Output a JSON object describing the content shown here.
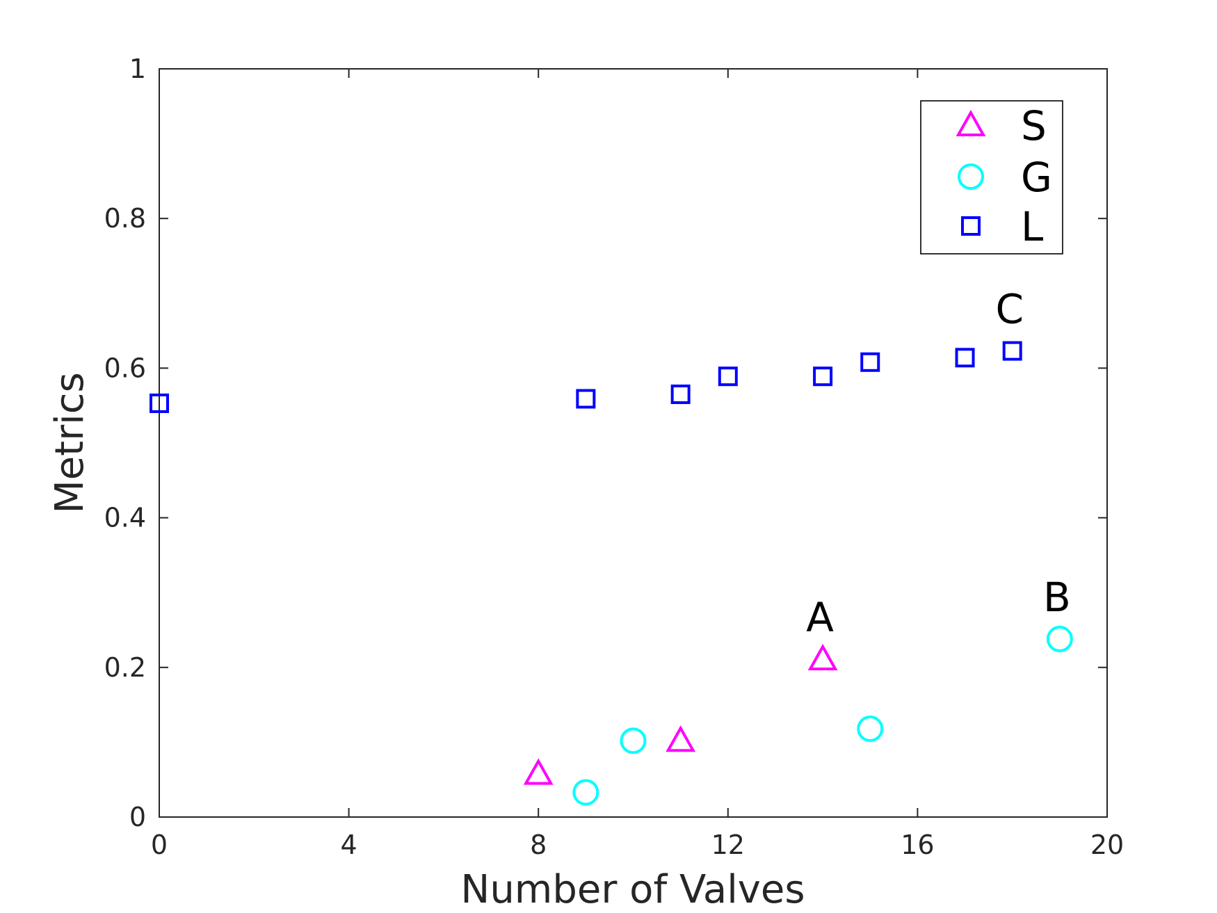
{
  "chart_data": {
    "type": "scatter",
    "xlabel": "Number of Valves",
    "ylabel": "Metrics",
    "xlim": [
      0,
      20
    ],
    "ylim": [
      0,
      1
    ],
    "xticks": [
      0,
      4,
      8,
      12,
      16,
      20
    ],
    "yticks": [
      0,
      0.2,
      0.4,
      0.6,
      0.8,
      1
    ],
    "xtick_labels": [
      "0",
      "4",
      "8",
      "12",
      "16",
      "20"
    ],
    "ytick_labels": [
      "0",
      "0.2",
      "0.4",
      "0.6",
      "0.8",
      "1"
    ],
    "grid": false,
    "legend_position": "top-right",
    "series": [
      {
        "name": "S",
        "marker": "triangle",
        "color": "#ff00ff",
        "x": [
          8,
          11,
          14
        ],
        "y": [
          0.058,
          0.102,
          0.211
        ]
      },
      {
        "name": "G",
        "marker": "circle",
        "color": "#00ffff",
        "x": [
          9,
          10,
          15,
          19
        ],
        "y": [
          0.033,
          0.102,
          0.118,
          0.238
        ]
      },
      {
        "name": "L",
        "marker": "square",
        "color": "#0000ff",
        "x": [
          0,
          9,
          11,
          12,
          14,
          15,
          17,
          18
        ],
        "y": [
          0.553,
          0.559,
          0.565,
          0.589,
          0.589,
          0.608,
          0.614,
          0.623
        ]
      }
    ],
    "annotations": [
      {
        "text": "A",
        "x": 14,
        "y": 0.211
      },
      {
        "text": "B",
        "x": 19,
        "y": 0.238
      },
      {
        "text": "C",
        "x": 18,
        "y": 0.623
      }
    ]
  }
}
